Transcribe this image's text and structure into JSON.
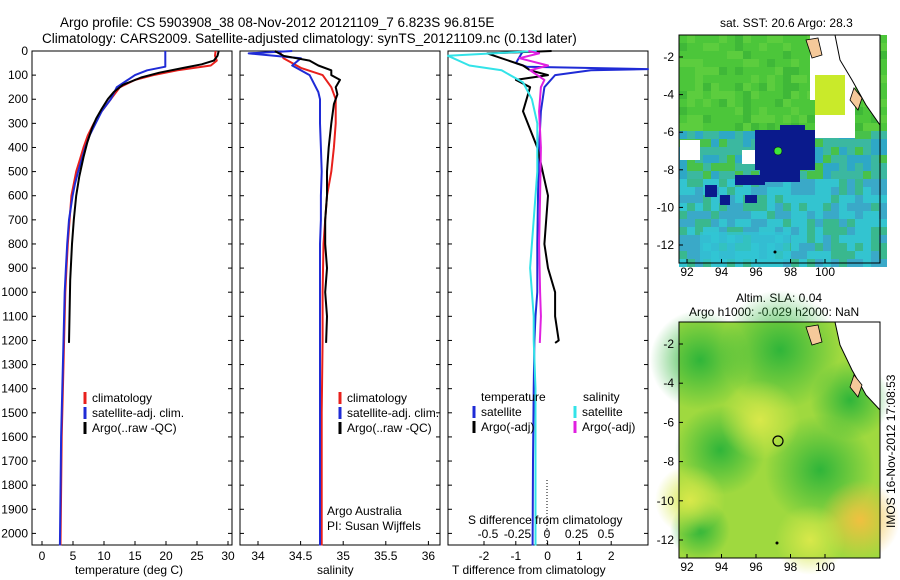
{
  "title_line1": "Argo profile: CS 5903908_38 08-Nov-2012 20121109_7 6.823S 96.815E",
  "title_line2": "Climatology: CARS2009. Satellite-adjusted climatology: synTS_20121109.nc (0.13d later)",
  "colors": {
    "clim": "#e8201c",
    "sat": "#1f2bd6",
    "argo": "#000000",
    "sat_s": "#33e3e8",
    "argo_s": "#e020e0"
  },
  "depth_ticks": [
    "0",
    "100",
    "200",
    "300",
    "400",
    "500",
    "600",
    "700",
    "800",
    "900",
    "1000",
    "1100",
    "1200",
    "1300",
    "1400",
    "1500",
    "1600",
    "1700",
    "1800",
    "1900",
    "2000"
  ],
  "temp_panel": {
    "xlabel": "temperature (deg C)",
    "xticks": [
      "0",
      "5",
      "10",
      "15",
      "20",
      "25",
      "30"
    ],
    "legend": [
      "climatology",
      "satellite-adj. clim.",
      "Argo(..raw -QC)"
    ]
  },
  "sal_panel": {
    "xlabel": "salinity",
    "xticks": [
      "34",
      "34.5",
      "35",
      "35.5",
      "36"
    ],
    "legend": [
      "climatology",
      "satellite-adj. clim.",
      "Argo(..raw -QC)"
    ],
    "note1": "Argo Australia",
    "note2": "PI: Susan Wijffels"
  },
  "diff_panel": {
    "top_label": "S difference from climatology",
    "top_ticks": [
      "-0.5",
      "-0.25",
      "0",
      "0.25",
      "0.5"
    ],
    "xlabel": "T difference from climatology",
    "xticks": [
      "-2",
      "-1",
      "0",
      "1",
      "2"
    ],
    "legend_t_title": "temperature",
    "legend_s_title": "salinity",
    "legend_t": [
      "satellite",
      "Argo(-adj)"
    ],
    "legend_s": [
      "satellite",
      "Argo(-adj)"
    ]
  },
  "map_sst": {
    "title": "sat. SST: 20.6  Argo: 28.3",
    "yticks": [
      "-2",
      "-4",
      "-6",
      "-8",
      "-10",
      "-12"
    ],
    "xticks": [
      "92",
      "94",
      "96",
      "98",
      "100"
    ]
  },
  "map_sla": {
    "title1": "Altim. SLA: 0.04",
    "title2": "Argo h1000: -0.029 h2000: NaN",
    "yticks": [
      "-2",
      "-4",
      "-6",
      "-8",
      "-10",
      "-12"
    ],
    "xticks": [
      "92",
      "94",
      "96",
      "98",
      "100"
    ]
  },
  "credit": "IMOS 16-Nov-2012 17:08:53",
  "chart_data": [
    {
      "type": "line",
      "xlabel": "temperature (deg C)",
      "ylabel": "",
      "xlim": [
        -2,
        31
      ],
      "ylim": [
        2060,
        0
      ],
      "series": [
        {
          "name": "climatology",
          "x": [
            28.3,
            28.2,
            28.5,
            27.5,
            22,
            18,
            15,
            12.5,
            11,
            9.5,
            8.2,
            7.2,
            6.5,
            5.9,
            5.3,
            4.9,
            4.5,
            4.2,
            3.9,
            3.7,
            3.5,
            3.3,
            3.1,
            2.9,
            2.7
          ],
          "y": [
            0,
            20,
            40,
            60,
            80,
            100,
            120,
            150,
            200,
            250,
            300,
            350,
            400,
            450,
            500,
            550,
            600,
            700,
            800,
            900,
            1000,
            1200,
            1400,
            1600,
            2050
          ]
        },
        {
          "name": "satellite-adj. clim.",
          "x": [
            20,
            20,
            20,
            17,
            15,
            12,
            11,
            9.5,
            8.5,
            7.5,
            6.8,
            6.2,
            5.6,
            5.1,
            4.7,
            4.4,
            4.1,
            3.8,
            3.6,
            3.4,
            3.2,
            3,
            2.8,
            2.6
          ],
          "y": [
            0,
            60,
            65,
            80,
            100,
            150,
            200,
            250,
            300,
            350,
            400,
            450,
            500,
            550,
            600,
            650,
            700,
            800,
            900,
            1000,
            1200,
            1400,
            1600,
            2050
          ]
        },
        {
          "name": "Argo(..raw -QC)",
          "x": [
            28.8,
            28.6,
            28,
            26,
            23,
            19,
            16,
            13,
            11.5,
            10.5,
            9.5,
            8.6,
            7.9,
            7.1,
            6.5,
            5.8,
            5.3,
            4.9,
            4.6,
            4.3,
            4.1
          ],
          "y": [
            0,
            20,
            40,
            55,
            70,
            90,
            110,
            140,
            170,
            200,
            240,
            280,
            320,
            380,
            440,
            520,
            600,
            700,
            800,
            950,
            1210
          ]
        }
      ]
    },
    {
      "type": "line",
      "xlabel": "salinity",
      "ylabel": "",
      "xlim": [
        33.8,
        36.1
      ],
      "ylim": [
        2060,
        0
      ],
      "series": [
        {
          "name": "climatology",
          "x": [
            34.25,
            34.3,
            34.5,
            34.75,
            34.85,
            34.9,
            34.9,
            34.9,
            34.88,
            34.85,
            34.8,
            34.78,
            34.76,
            34.75,
            34.75,
            34.74,
            34.74,
            34.74
          ],
          "y": [
            0,
            30,
            70,
            100,
            150,
            200,
            250,
            300,
            400,
            500,
            600,
            700,
            800,
            1000,
            1200,
            1500,
            1800,
            2050
          ]
        },
        {
          "name": "satellite-adj. clim.",
          "x": [
            34.4,
            33.9,
            34.5,
            34.4,
            34.6,
            34.7,
            34.72,
            34.72,
            34.73,
            34.74,
            34.73,
            34.73,
            34.72,
            34.72,
            34.72,
            34.72,
            34.72
          ],
          "y": [
            0,
            10,
            30,
            60,
            100,
            170,
            200,
            300,
            400,
            500,
            600,
            700,
            800,
            1000,
            1300,
            1600,
            2050
          ]
        },
        {
          "name": "Argo(..raw -QC)",
          "x": [
            34.2,
            34.3,
            34.6,
            34.7,
            34.85,
            34.85,
            34.95,
            34.9,
            34.92,
            34.88,
            34.85,
            34.82,
            34.8,
            34.8,
            34.78,
            34.78,
            34.8,
            34.78,
            34.8,
            34.79
          ],
          "y": [
            0,
            20,
            40,
            60,
            80,
            100,
            120,
            150,
            180,
            220,
            300,
            400,
            500,
            600,
            700,
            800,
            900,
            1000,
            1100,
            1210
          ]
        }
      ]
    },
    {
      "type": "line",
      "xlabel": "T difference from climatology",
      "x2label": "S difference from climatology",
      "ylabel": "",
      "xlim": [
        -2.5,
        3.1
      ],
      "ylim": [
        2060,
        0
      ],
      "series": [
        {
          "name": "temperature satellite",
          "x": [
            -0.4,
            -0.6,
            -0.3,
            3.3,
            1.5,
            0.5,
            0.2,
            0.1,
            0.05,
            0.02,
            0,
            0,
            0,
            -0.05,
            -0.08,
            -0.1,
            -0.12,
            -0.13
          ],
          "y": [
            0,
            50,
            65,
            75,
            80,
            100,
            150,
            250,
            400,
            600,
            800,
            900,
            1000,
            1100,
            1200,
            1400,
            1700,
            2050
          ]
        },
        {
          "name": "temperature Argo(-adj)",
          "x": [
            0.4,
            -1.4,
            -0.4,
            -0.2,
            0.3,
            -0.6,
            -0.2,
            -0.4,
            0,
            0.3,
            0.2,
            0.3,
            0.5,
            0.5,
            0.6,
            0.5
          ],
          "y": [
            0,
            10,
            60,
            80,
            100,
            120,
            150,
            250,
            400,
            600,
            800,
            900,
            1000,
            1100,
            1200,
            1210
          ]
        },
        {
          "name": "salinity satellite",
          "x": [
            -0.02,
            -2.8,
            -1.9,
            -1,
            -0.4,
            -0.15,
            0,
            0,
            -0.1,
            -0.2,
            -0.15,
            -0.1,
            -0.1,
            -0.05,
            -0.05,
            -0.05
          ],
          "y": [
            0,
            20,
            60,
            80,
            130,
            200,
            300,
            500,
            700,
            900,
            1000,
            1100,
            1200,
            1400,
            1700,
            2050
          ]
        },
        {
          "name": "salinity Argo(-adj)",
          "x": [
            -0.25,
            0.05,
            -0.5,
            0.3,
            -0.2,
            0.2,
            0.1,
            0.05,
            0.1,
            0.08,
            0.05,
            0.08,
            0.1,
            0.07
          ],
          "y": [
            0,
            10,
            30,
            60,
            80,
            120,
            150,
            250,
            400,
            600,
            800,
            1000,
            1100,
            1210
          ]
        }
      ]
    }
  ]
}
